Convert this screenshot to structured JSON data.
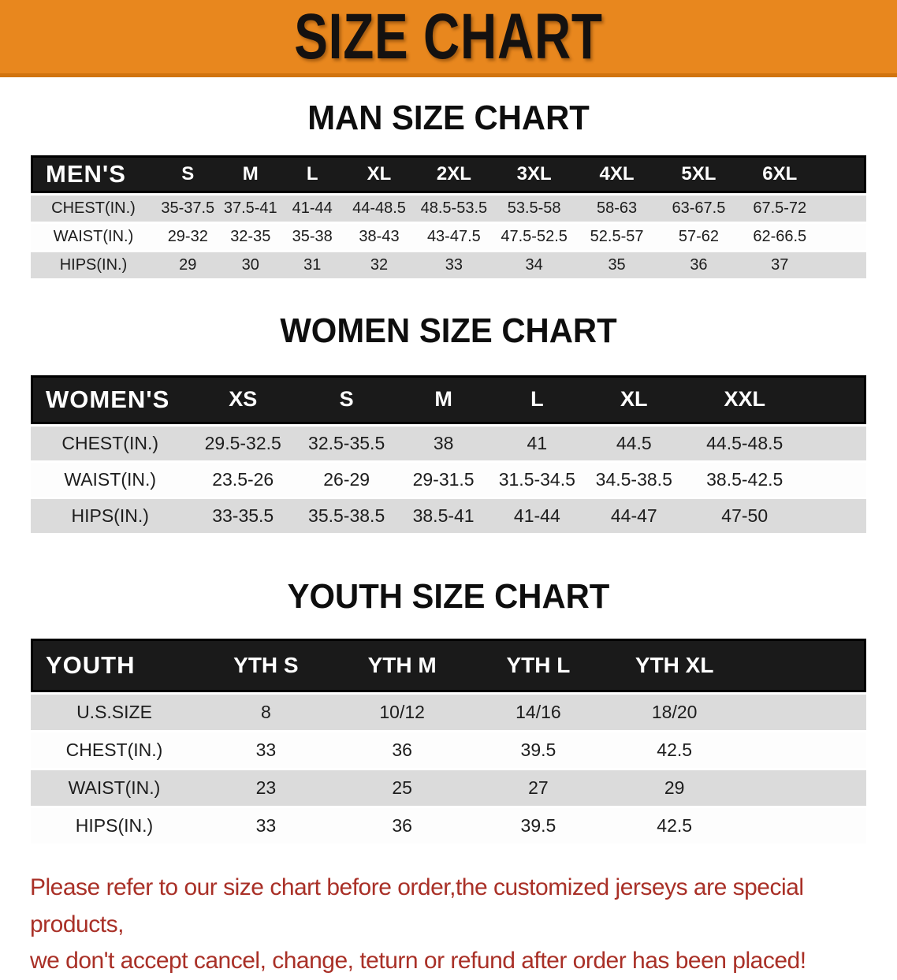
{
  "banner": {
    "title": "SIZE CHART",
    "background_color": "#E8871E",
    "text_color": "#141110"
  },
  "sections": [
    {
      "heading": "MAN SIZE CHART",
      "table": {
        "header": [
          "MEN'S",
          "S",
          "M",
          "L",
          "XL",
          "2XL",
          "3XL",
          "4XL",
          "5XL",
          "6XL"
        ],
        "rows": [
          [
            "CHEST(IN.)",
            "35-37.5",
            "37.5-41",
            "41-44",
            "44-48.5",
            "48.5-53.5",
            "53.5-58",
            "58-63",
            "63-67.5",
            "67.5-72"
          ],
          [
            "WAIST(IN.)",
            "29-32",
            "32-35",
            "35-38",
            "38-43",
            "43-47.5",
            "47.5-52.5",
            "52.5-57",
            "57-62",
            "62-66.5"
          ],
          [
            "HIPS(IN.)",
            "29",
            "30",
            "31",
            "32",
            "33",
            "34",
            "35",
            "36",
            "37"
          ]
        ]
      }
    },
    {
      "heading": "WOMEN SIZE CHART",
      "table": {
        "header": [
          "WOMEN'S",
          "XS",
          "S",
          "M",
          "L",
          "XL",
          "XXL"
        ],
        "rows": [
          [
            "CHEST(IN.)",
            "29.5-32.5",
            "32.5-35.5",
            "38",
            "41",
            "44.5",
            "44.5-48.5"
          ],
          [
            "WAIST(IN.)",
            "23.5-26",
            "26-29",
            "29-31.5",
            "31.5-34.5",
            "34.5-38.5",
            "38.5-42.5"
          ],
          [
            "HIPS(IN.)",
            "33-35.5",
            "35.5-38.5",
            "38.5-41",
            "41-44",
            "44-47",
            "47-50"
          ]
        ]
      }
    },
    {
      "heading": "YOUTH SIZE CHART",
      "table": {
        "header": [
          "YOUTH",
          "YTH S",
          "YTH M",
          "YTH L",
          "YTH XL"
        ],
        "rows": [
          [
            "U.S.SIZE",
            "8",
            "10/12",
            "14/16",
            "18/20"
          ],
          [
            "CHEST(IN.)",
            "33",
            "36",
            "39.5",
            "42.5"
          ],
          [
            "WAIST(IN.)",
            "23",
            "25",
            "27",
            "29"
          ],
          [
            "HIPS(IN.)",
            "33",
            "36",
            "39.5",
            "42.5"
          ]
        ]
      }
    }
  ],
  "disclaimer": {
    "line1": "Please refer to our size chart before order,the customized jerseys are special products,",
    "line2": "we don't accept cancel, change, teturn or refund after order has been placed!",
    "text_color": "#A93027"
  },
  "colors": {
    "banner_orange": "#E8871E",
    "table_header_black": "#1a1a1a",
    "row_stripe_gray": "#dbdbdb",
    "disclaimer_red": "#A93027"
  }
}
